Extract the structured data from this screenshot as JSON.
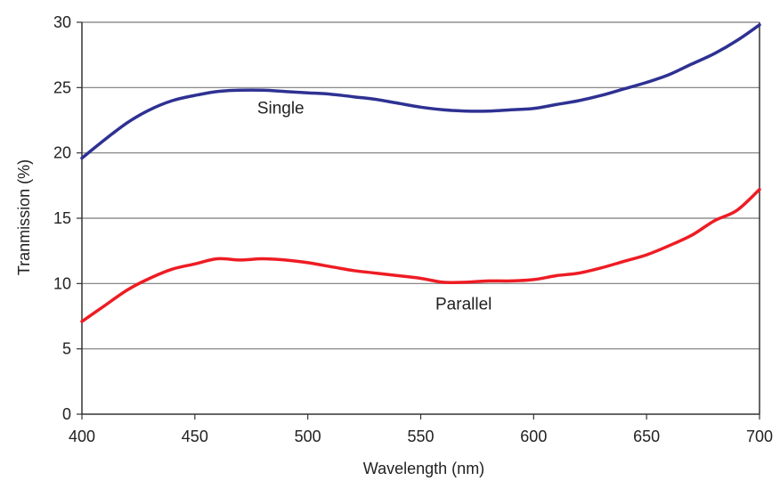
{
  "chart_data": {
    "type": "line",
    "title": "",
    "xlabel": "Wavelength (nm)",
    "ylabel": "Tranmission (%)",
    "xlim": [
      400,
      700
    ],
    "ylim": [
      0,
      30
    ],
    "x_ticks": [
      "400",
      "450",
      "500",
      "550",
      "600",
      "650",
      "700"
    ],
    "y_ticks": [
      "0",
      "5",
      "10",
      "15",
      "20",
      "25",
      "30"
    ],
    "grid": "horizontal",
    "series": [
      {
        "name": "Single",
        "color": "#2e3192",
        "x": [
          400,
          410,
          420,
          430,
          440,
          450,
          460,
          470,
          480,
          490,
          500,
          510,
          520,
          530,
          540,
          550,
          560,
          570,
          580,
          590,
          600,
          610,
          620,
          630,
          640,
          650,
          660,
          670,
          680,
          690,
          700
        ],
        "y": [
          19.6,
          21.0,
          22.3,
          23.3,
          24.0,
          24.4,
          24.7,
          24.8,
          24.8,
          24.7,
          24.6,
          24.5,
          24.3,
          24.1,
          23.8,
          23.5,
          23.3,
          23.2,
          23.2,
          23.3,
          23.4,
          23.7,
          24.0,
          24.4,
          24.9,
          25.4,
          26.0,
          26.8,
          27.6,
          28.6,
          29.8
        ]
      },
      {
        "name": "Parallel",
        "color": "#ee1c24",
        "x": [
          400,
          410,
          420,
          430,
          440,
          450,
          460,
          470,
          480,
          490,
          500,
          510,
          520,
          530,
          540,
          550,
          560,
          570,
          580,
          590,
          600,
          610,
          620,
          630,
          640,
          650,
          660,
          670,
          680,
          690,
          700
        ],
        "y": [
          7.1,
          8.3,
          9.5,
          10.4,
          11.1,
          11.5,
          11.9,
          11.8,
          11.9,
          11.8,
          11.6,
          11.3,
          11.0,
          10.8,
          10.6,
          10.4,
          10.1,
          10.1,
          10.2,
          10.2,
          10.3,
          10.6,
          10.8,
          11.2,
          11.7,
          12.2,
          12.9,
          13.7,
          14.8,
          15.6,
          17.2
        ]
      }
    ],
    "annotations": [
      {
        "text": "Single",
        "x": 488,
        "y": 23.0
      },
      {
        "text": "Parallel",
        "x": 569,
        "y": 8.0
      }
    ]
  }
}
